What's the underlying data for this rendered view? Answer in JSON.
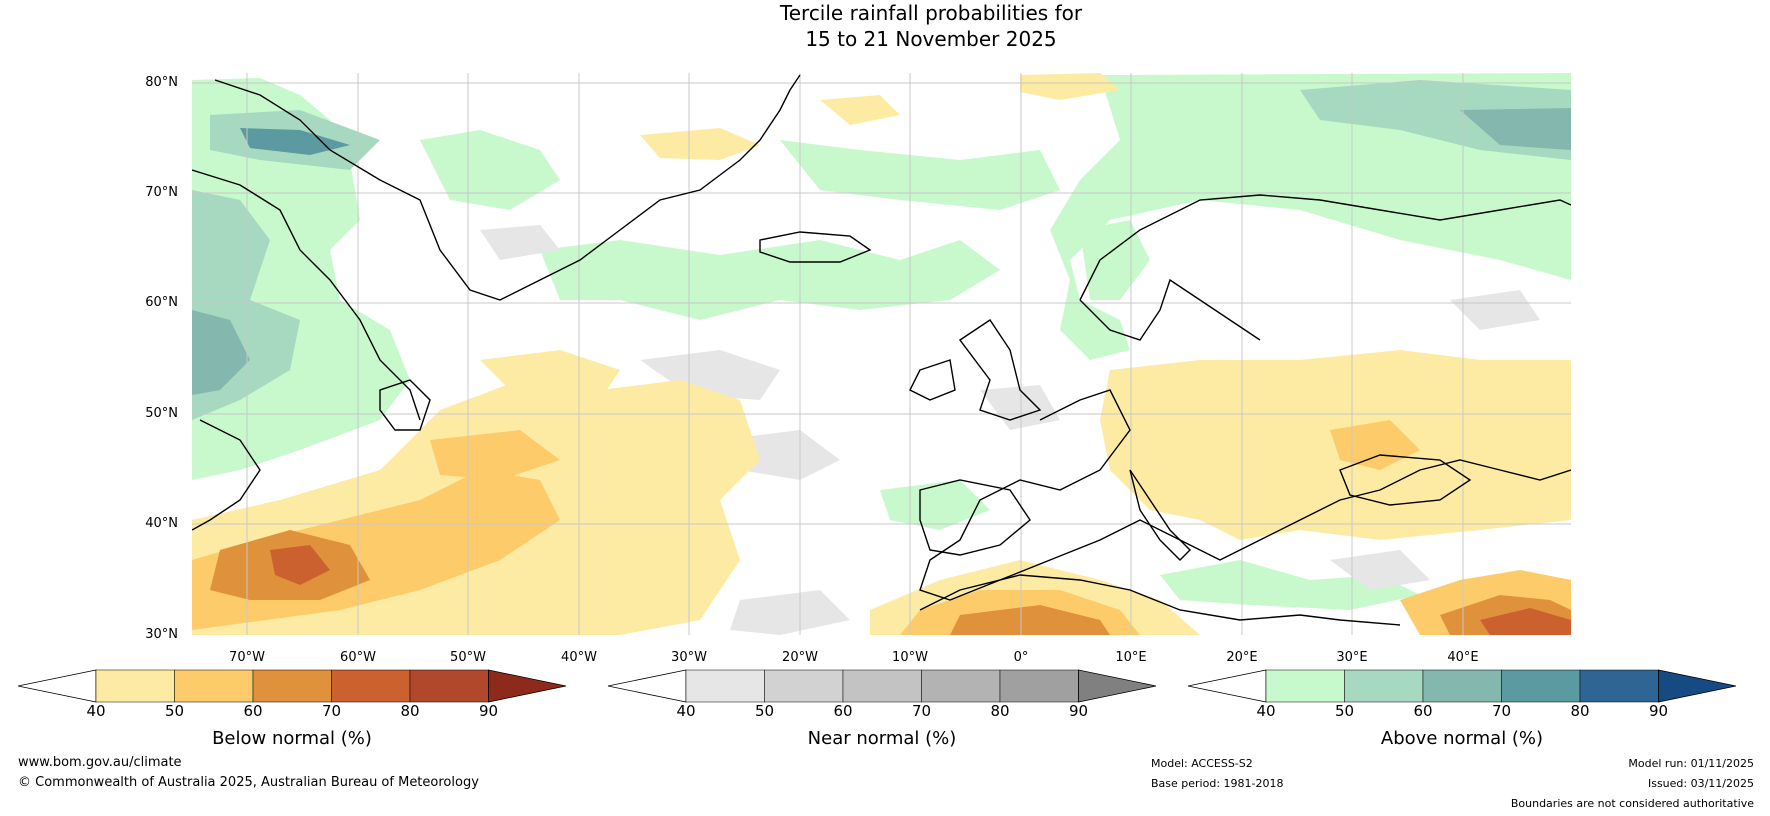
{
  "title": {
    "line1": "Tercile rainfall probabilities for",
    "line2": "15 to 21 November 2025"
  },
  "map": {
    "lat_labels": [
      "80°N",
      "70°N",
      "60°N",
      "50°N",
      "40°N",
      "30°N"
    ],
    "lon_labels": [
      "70°W",
      "60°W",
      "50°W",
      "40°W",
      "30°W",
      "20°W",
      "10°W",
      "0°",
      "10°E",
      "20°E",
      "30°E",
      "40°E"
    ]
  },
  "colorbars": [
    {
      "name": "below",
      "title": "Below normal (%)",
      "ticks": [
        "40",
        "50",
        "60",
        "70",
        "80",
        "90"
      ],
      "colors": [
        "#fdeba3",
        "#fdcb6a",
        "#e0913c",
        "#cc6130",
        "#b2482b",
        "#8e2a1b"
      ]
    },
    {
      "name": "near",
      "title": "Near normal (%)",
      "ticks": [
        "40",
        "50",
        "60",
        "70",
        "80",
        "90"
      ],
      "colors": [
        "#e6e6e6",
        "#d2d2d2",
        "#c3c3c3",
        "#b3b3b3",
        "#a0a0a0",
        "#808080"
      ]
    },
    {
      "name": "above",
      "title": "Above normal (%)",
      "ticks": [
        "40",
        "50",
        "60",
        "70",
        "80",
        "90"
      ],
      "colors": [
        "#c7f9cc",
        "#a6d9bf",
        "#84b7ad",
        "#5a9aa0",
        "#2f6595",
        "#154a82"
      ]
    }
  ],
  "colors": {
    "below_light": "#fdeba3",
    "below_mid": "#fdcb6a",
    "below_dark": "#e0913c",
    "below_darker": "#cc6130",
    "near_light": "#e6e6e6",
    "above_light": "#c7f9cc",
    "above_mid": "#a6d9bf",
    "above_dark": "#84b7ad",
    "above_darker": "#5a9aa0"
  },
  "footer": {
    "website": "www.bom.gov.au/climate",
    "copyright": "© Commonwealth of Australia 2025, Australian Bureau of Meteorology",
    "model": "Model: ACCESS-S2",
    "base_period": "Base period: 1981-2018",
    "model_run": "Model run: 01/11/2025",
    "issued": "Issued: 03/11/2025",
    "disclaimer": "Boundaries are not considered authoritative"
  }
}
